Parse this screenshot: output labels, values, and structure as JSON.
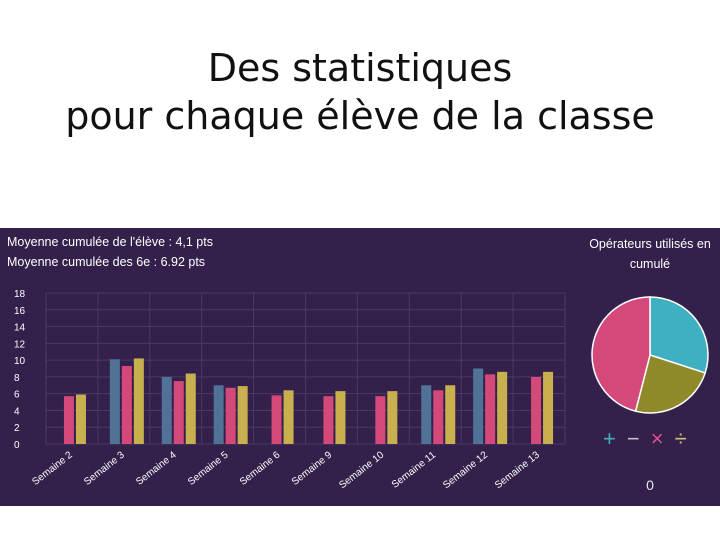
{
  "slide": {
    "title_line1": "Des statistiques",
    "title_line2": "pour chaque élève de la classe"
  },
  "stats": {
    "student_avg": "Moyenne cumulée de l'élève : 4,1 pts",
    "class_avg": "Moyenne cumulée des 6e : 6.92 pts"
  },
  "pie": {
    "title_line1": "Opérateurs utilisés en",
    "title_line2": "cumulé",
    "bottom_value": "0",
    "operators": [
      {
        "symbol": "+",
        "icon": "plus-icon"
      },
      {
        "symbol": "−",
        "icon": "minus-icon"
      },
      {
        "symbol": "×",
        "icon": "times-icon"
      },
      {
        "symbol": "÷",
        "icon": "divide-icon"
      }
    ]
  },
  "colors": {
    "panel_bg": "#33214b",
    "pink": "#d4497a",
    "steel_blue": "#4f7296",
    "gold": "#c9b04f",
    "pie_teal": "#3fb0c2",
    "pie_olive": "#8e8a2a",
    "pie_pink": "#d4497a"
  },
  "chart_data": [
    {
      "type": "bar",
      "title": "",
      "xlabel": "",
      "ylabel": "",
      "ylim": [
        0,
        18
      ],
      "yticks": [
        "0",
        "2",
        "4",
        "6",
        "8",
        "10",
        "12",
        "14",
        "16",
        "18"
      ],
      "grid": true,
      "categories": [
        "Semaine 2",
        "Semaine 3",
        "Semaine 4",
        "Semaine 5",
        "Semaine 6",
        "Semaine 9",
        "Semaine 10",
        "Semaine 11",
        "Semaine 12",
        "Semaine 13"
      ],
      "series": [
        {
          "color": "#4f7296",
          "values": [
            null,
            10.1,
            8.0,
            7.0,
            null,
            null,
            null,
            7.0,
            9.0,
            null
          ]
        },
        {
          "color": "#d4497a",
          "values": [
            5.7,
            9.3,
            7.5,
            6.7,
            5.8,
            5.7,
            5.7,
            6.4,
            8.3,
            8.0
          ]
        },
        {
          "color": "#c9b04f",
          "values": [
            5.9,
            10.2,
            8.4,
            6.9,
            6.4,
            6.3,
            6.3,
            7.0,
            8.6,
            8.6
          ]
        }
      ]
    },
    {
      "type": "pie",
      "title": "Opérateurs utilisés en cumulé",
      "slices": [
        {
          "label": "+",
          "value": 30,
          "color": "#3fb0c2"
        },
        {
          "label": "−",
          "value": 24,
          "color": "#8e8a2a"
        },
        {
          "label": "×",
          "value": 46,
          "color": "#d4497a"
        }
      ]
    }
  ]
}
